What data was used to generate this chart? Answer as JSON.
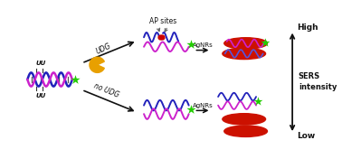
{
  "bg_color": "#ffffff",
  "dna_blue": "#2222bb",
  "dna_magenta": "#cc22cc",
  "dna_red_dot": "#cc0000",
  "agnr_red": "#cc1100",
  "green_star": "#22cc00",
  "arrow_color": "#111111",
  "text_color": "#111111",
  "gold_color": "#e8a000",
  "text_AP": "AP sites",
  "text_UDG": "UDG",
  "text_noUDG": "no UDG",
  "text_AgNRs": "AgNRs",
  "text_High": "High",
  "text_Low": "Low",
  "text_SERS": "SERS\nintensity",
  "text_UU": "UU"
}
